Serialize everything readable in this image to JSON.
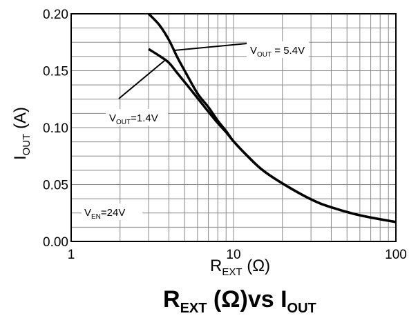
{
  "chart_data": {
    "type": "line",
    "title": {
      "main": "R",
      "sub": "EXT",
      "mid": " (Ω)vs I",
      "sub2": "OUT"
    },
    "xlabel": {
      "main": "R",
      "sub": "EXT",
      "rest": " (Ω)"
    },
    "ylabel": {
      "main": "I",
      "sub": "OUT",
      "rest": " (A)"
    },
    "x_scale": "log",
    "xlim": [
      1,
      100
    ],
    "ylim": [
      0,
      0.2
    ],
    "x_tick_labels": [
      "1",
      "10",
      "100"
    ],
    "x_tick_values": [
      1,
      10,
      100
    ],
    "y_tick_labels": [
      "0.00",
      "0.05",
      "0.10",
      "0.15",
      "0.20"
    ],
    "y_tick_values": [
      0,
      0.05,
      0.1,
      0.15,
      0.2
    ],
    "grid": true,
    "series": [
      {
        "name": "VOUT = 5.4V",
        "x": [
          3,
          3.5,
          4,
          4.5,
          5,
          6,
          7,
          8,
          9,
          10,
          12,
          15,
          20,
          30,
          40,
          60,
          100
        ],
        "y": [
          0.2,
          0.19,
          0.177,
          0.162,
          0.15,
          0.13,
          0.118,
          0.106,
          0.097,
          0.088,
          0.076,
          0.063,
          0.051,
          0.037,
          0.03,
          0.023,
          0.017
        ]
      },
      {
        "name": "VOUT=1.4V",
        "x": [
          3,
          3.5,
          4,
          4.5,
          5,
          6,
          7,
          8,
          9,
          10,
          12,
          15,
          20,
          30,
          40,
          60,
          100
        ],
        "y": [
          0.169,
          0.163,
          0.157,
          0.148,
          0.14,
          0.126,
          0.114,
          0.104,
          0.096,
          0.088,
          0.076,
          0.063,
          0.051,
          0.037,
          0.03,
          0.023,
          0.017
        ]
      }
    ],
    "annotations": [
      {
        "main": "V",
        "sub": "OUT",
        "rest": " = 5.4V"
      },
      {
        "main": "V",
        "sub": "OUT",
        "rest": "=1.4V"
      },
      {
        "main": "V",
        "sub": "EN",
        "rest": "=24V"
      }
    ]
  }
}
